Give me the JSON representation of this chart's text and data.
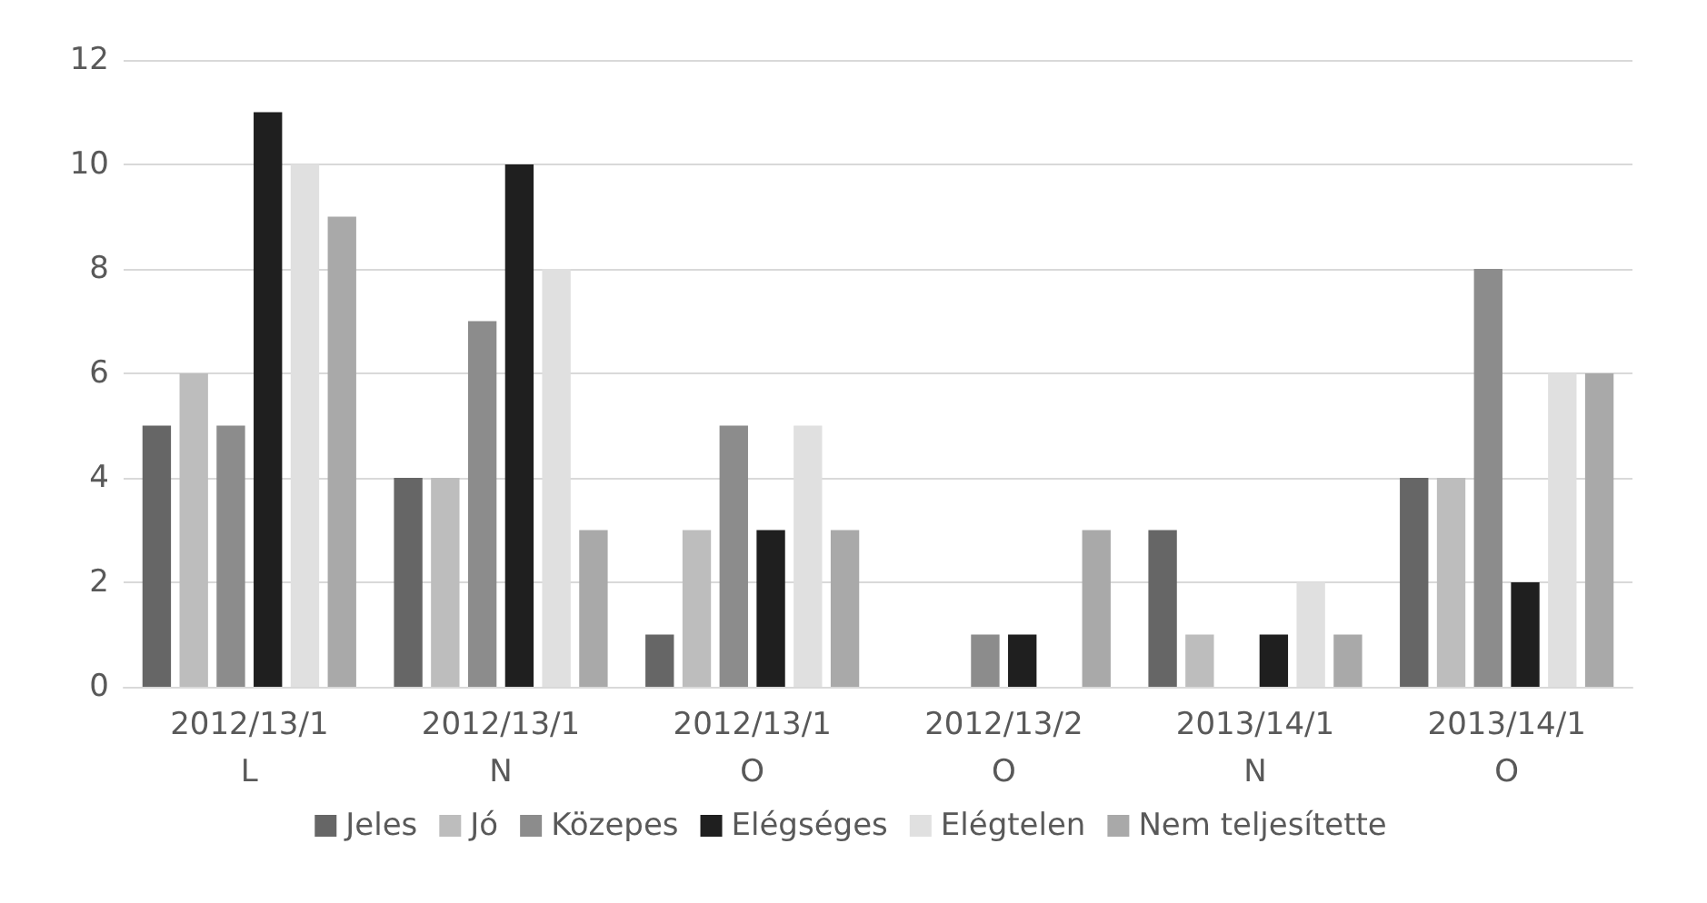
{
  "chart_data": {
    "type": "bar",
    "categories": [
      "2012/13/1\nL",
      "2012/13/1\nN",
      "2012/13/1\nO",
      "2012/13/2\nO",
      "2013/14/1\nN",
      "2013/14/1\nO"
    ],
    "series": [
      {
        "name": "Jeles",
        "color": "#666666",
        "values": [
          5,
          4,
          1,
          0,
          3,
          4
        ]
      },
      {
        "name": "Jó",
        "color": "#bdbdbd",
        "values": [
          6,
          4,
          3,
          0,
          1,
          4
        ]
      },
      {
        "name": "Közepes",
        "color": "#8c8c8c",
        "values": [
          5,
          7,
          5,
          1,
          0,
          8
        ]
      },
      {
        "name": "Elégséges",
        "color": "#1f1f1f",
        "values": [
          11,
          10,
          3,
          1,
          1,
          2
        ]
      },
      {
        "name": "Elégtelen",
        "color": "#e0e0e0",
        "values": [
          10,
          8,
          5,
          0,
          2,
          6
        ]
      },
      {
        "name": "Nem teljesítette",
        "color": "#a9a9a9",
        "values": [
          9,
          3,
          3,
          3,
          1,
          6
        ]
      }
    ],
    "ylim": [
      0,
      12
    ],
    "yticks": [
      0,
      2,
      4,
      6,
      8,
      10,
      12
    ],
    "grid": "y",
    "legend": "bottom"
  }
}
